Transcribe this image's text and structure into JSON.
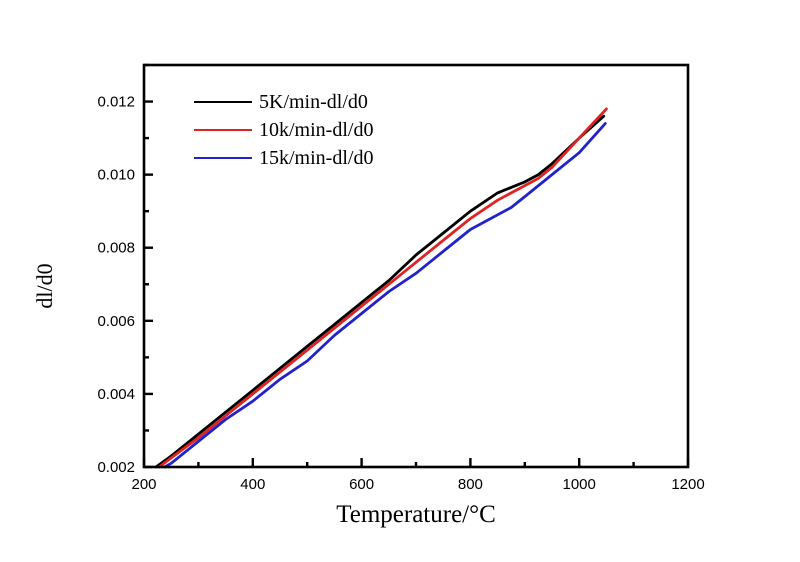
{
  "chart_data": {
    "type": "line",
    "title": "",
    "xlabel": "Temperature/°C",
    "ylabel": "dl/d0",
    "xlim": [
      200,
      1200
    ],
    "ylim": [
      0.002,
      0.013
    ],
    "grid": false,
    "legend_position": "top-left-inside",
    "axis_color": "#000000",
    "x_major_ticks": [
      {
        "v": 200,
        "label": "200"
      },
      {
        "v": 400,
        "label": "400"
      },
      {
        "v": 600,
        "label": "600"
      },
      {
        "v": 800,
        "label": "800"
      },
      {
        "v": 1000,
        "label": "1000"
      },
      {
        "v": 1200,
        "label": "1200"
      }
    ],
    "x_minor_ticks": [
      300,
      500,
      700,
      900,
      1100
    ],
    "y_major_ticks": [
      {
        "v": 0.002,
        "label": "0.002"
      },
      {
        "v": 0.004,
        "label": "0.004"
      },
      {
        "v": 0.006,
        "label": "0.006"
      },
      {
        "v": 0.008,
        "label": "0.008"
      },
      {
        "v": 0.01,
        "label": "0.010"
      },
      {
        "v": 0.012,
        "label": "0.012"
      }
    ],
    "y_minor_ticks": [
      0.003,
      0.005,
      0.007,
      0.009,
      0.011,
      0.013
    ],
    "legend": {
      "entries": [
        {
          "label": "5K/min-dl/d0",
          "color": "#000000"
        },
        {
          "label": "10k/min-dl/d0",
          "color": "#e02222"
        },
        {
          "label": "15k/min-dl/d0",
          "color": "#2222cc"
        }
      ]
    },
    "series": [
      {
        "name": "5K/min-dl/d0",
        "color": "#000000",
        "points": [
          [
            222,
            0.002
          ],
          [
            250,
            0.0023
          ],
          [
            300,
            0.0029
          ],
          [
            350,
            0.0035
          ],
          [
            400,
            0.0041
          ],
          [
            450,
            0.0047
          ],
          [
            500,
            0.0053
          ],
          [
            550,
            0.0059
          ],
          [
            600,
            0.0065
          ],
          [
            650,
            0.0071
          ],
          [
            700,
            0.0078
          ],
          [
            750,
            0.0084
          ],
          [
            800,
            0.009
          ],
          [
            850,
            0.0095
          ],
          [
            875,
            0.00965
          ],
          [
            900,
            0.0098
          ],
          [
            925,
            0.01
          ],
          [
            950,
            0.0103
          ],
          [
            1000,
            0.011
          ],
          [
            1045,
            0.0116
          ]
        ]
      },
      {
        "name": "10k/min-dl/d0",
        "color": "#e02222",
        "points": [
          [
            228,
            0.002
          ],
          [
            250,
            0.00225
          ],
          [
            300,
            0.0028
          ],
          [
            350,
            0.0034
          ],
          [
            400,
            0.004
          ],
          [
            450,
            0.0046
          ],
          [
            500,
            0.0052
          ],
          [
            550,
            0.0058
          ],
          [
            600,
            0.0064
          ],
          [
            650,
            0.007
          ],
          [
            700,
            0.0076
          ],
          [
            750,
            0.0082
          ],
          [
            800,
            0.0088
          ],
          [
            850,
            0.0093
          ],
          [
            875,
            0.0095
          ],
          [
            900,
            0.0097
          ],
          [
            925,
            0.0099
          ],
          [
            950,
            0.0102
          ],
          [
            1000,
            0.011
          ],
          [
            1050,
            0.0118
          ]
        ]
      },
      {
        "name": "15k/min-dl/d0",
        "color": "#2222cc",
        "points": [
          [
            238,
            0.002
          ],
          [
            250,
            0.0021
          ],
          [
            300,
            0.0027
          ],
          [
            350,
            0.0033
          ],
          [
            400,
            0.0038
          ],
          [
            450,
            0.0044
          ],
          [
            500,
            0.0049
          ],
          [
            550,
            0.0056
          ],
          [
            600,
            0.0062
          ],
          [
            650,
            0.0068
          ],
          [
            700,
            0.0073
          ],
          [
            750,
            0.0079
          ],
          [
            800,
            0.0085
          ],
          [
            850,
            0.0089
          ],
          [
            875,
            0.0091
          ],
          [
            900,
            0.0094
          ],
          [
            950,
            0.01
          ],
          [
            1000,
            0.0106
          ],
          [
            1048,
            0.0114
          ]
        ]
      }
    ]
  }
}
